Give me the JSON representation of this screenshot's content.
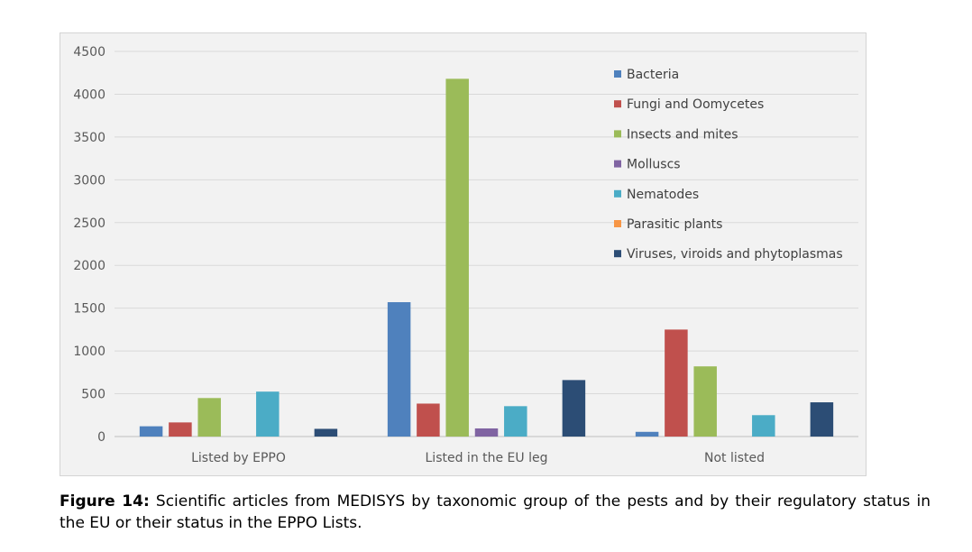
{
  "chart_data": {
    "type": "bar",
    "categories": [
      "Listed by EPPO",
      "Listed in the EU leg",
      "Not listed"
    ],
    "series": [
      {
        "name": "Bacteria",
        "color": "#4f81bd",
        "values": [
          120,
          1570,
          55
        ]
      },
      {
        "name": "Fungi and Oomycetes",
        "color": "#c0504d",
        "values": [
          165,
          385,
          1250
        ]
      },
      {
        "name": "Insects and mites",
        "color": "#9bbb59",
        "values": [
          450,
          4180,
          820
        ]
      },
      {
        "name": "Molluscs",
        "color": "#8064a2",
        "values": [
          0,
          95,
          0
        ]
      },
      {
        "name": "Nematodes",
        "color": "#4bacc6",
        "values": [
          525,
          355,
          250
        ]
      },
      {
        "name": "Parasitic plants",
        "color": "#f79646",
        "values": [
          0,
          0,
          0
        ]
      },
      {
        "name": "Viruses, viroids and phytoplasmas",
        "color": "#2c4d75",
        "values": [
          90,
          660,
          400
        ]
      }
    ],
    "yticks": [
      "0",
      "500",
      "1000",
      "1500",
      "2000",
      "2500",
      "3000",
      "3500",
      "4000",
      "4500"
    ],
    "ylim": [
      0,
      4500
    ],
    "grid": true,
    "legend_position": "top-right"
  },
  "caption": {
    "label": "Figure 14:",
    "text": " Scientific articles from MEDISYS by taxonomic group of the pests and by their regulatory status in the EU or their status in the EPPO Lists."
  }
}
